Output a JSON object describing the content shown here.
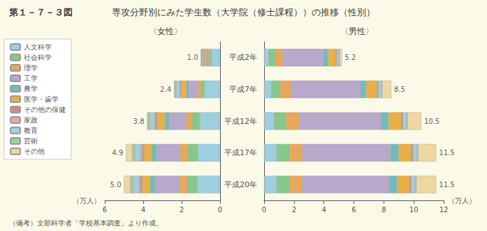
{
  "title": "第１－７－３図",
  "subtitle": "専攻分野別にみた学生数（大学院（修士課程））の推移（性別）",
  "note": "（備考）文部科学者「学校基本調査」より作成。",
  "chart_data": [
    {
      "type": "bar",
      "orientation": "horizontal",
      "stacked": true,
      "title": "〈女性〉",
      "x_label": "（万人）",
      "categories": [
        "平成2年",
        "平成7年",
        "平成12年",
        "平成17年",
        "平成20年"
      ],
      "xlim": [
        6,
        0
      ],
      "xticks": [
        6,
        4,
        2,
        0
      ],
      "grid": false,
      "legend": "left",
      "totals": [
        1.0,
        2.4,
        3.8,
        4.9,
        5.0
      ],
      "total_labels": [
        "1.0",
        "2.4",
        "3.8",
        "4.9",
        "5.0"
      ],
      "series": [
        {
          "name": "人文科学",
          "color": "#9DCFDF",
          "values": [
            0.4516,
            0.8,
            1.0605,
            1.1715,
            1.1979
          ]
        },
        {
          "name": "社会科学",
          "color": "#84C98A",
          "values": [
            0.0806,
            0.2154,
            0.3977,
            0.5094,
            0.5208
          ]
        },
        {
          "name": "理学",
          "color": "#E8A858",
          "values": [
            0.0806,
            0.1846,
            0.3093,
            0.4075,
            0.4167
          ]
        },
        {
          "name": "工学",
          "color": "#B8A8CC",
          "values": [
            0.0968,
            0.4308,
            0.8837,
            1.2225,
            1.25
          ]
        },
        {
          "name": "農学",
          "color": "#70BCBC",
          "values": [
            0.0323,
            0.1231,
            0.2209,
            0.2547,
            0.2604
          ]
        },
        {
          "name": "医学・歯学",
          "color": "#E8B048",
          "values": [
            0.1129,
            0.2769,
            0.3977,
            0.4075,
            0.4167
          ]
        },
        {
          "name": "その他の保健",
          "color": "#C89080",
          "values": [
            0.0161,
            0.0462,
            0.0884,
            0.1019,
            0.1042
          ]
        },
        {
          "name": "家政",
          "color": "#E8A8A0",
          "values": [
            0.0242,
            0.0462,
            0.053,
            0.0611,
            0.0625
          ]
        },
        {
          "name": "教育",
          "color": "#A8CCE0",
          "values": [
            0.0645,
            0.1538,
            0.2209,
            0.2801,
            0.2865
          ]
        },
        {
          "name": "芸術",
          "color": "#98D0A0",
          "values": [
            0.0323,
            0.0923,
            0.1326,
            0.1528,
            0.15625
          ]
        },
        {
          "name": "その他",
          "color": "#EED8A0",
          "values": [
            0.0081,
            0.0308,
            0.0353,
            0.3311,
            0.328125
          ]
        }
      ]
    },
    {
      "type": "bar",
      "orientation": "horizontal",
      "stacked": true,
      "title": "〈男性〉",
      "x_label": "（万人）",
      "categories": [
        "平成2年",
        "平成7年",
        "平成12年",
        "平成17年",
        "平成20年"
      ],
      "xlim": [
        0,
        12
      ],
      "xticks": [
        0,
        2,
        4,
        6,
        8,
        10,
        12
      ],
      "grid": false,
      "totals": [
        5.2,
        8.5,
        10.5,
        11.5,
        11.5
      ],
      "total_labels": [
        "5.2",
        "8.5",
        "10.5",
        "11.5",
        "11.5"
      ],
      "series": [
        {
          "name": "人文科学",
          "color": "#9DCFDF",
          "values": [
            0.312,
            0.4862,
            0.6749,
            0.8448,
            0.844
          ]
        },
        {
          "name": "社会科学",
          "color": "#84C98A",
          "values": [
            0.416,
            0.5672,
            0.7713,
            0.8448,
            0.844
          ]
        },
        {
          "name": "理学",
          "color": "#E8A858",
          "values": [
            0.52,
            0.7293,
            0.8678,
            0.8448,
            0.844
          ]
        },
        {
          "name": "工学",
          "color": "#B8A8CC",
          "values": [
            2.704,
            4.6187,
            5.4959,
            5.9137,
            5.8028
          ]
        },
        {
          "name": "農学",
          "color": "#70BCBC",
          "values": [
            0.312,
            0.4051,
            0.4821,
            0.528,
            0.5275
          ]
        },
        {
          "name": "医学・歯学",
          "color": "#E8B048",
          "values": [
            0.52,
            0.7293,
            0.8678,
            0.8448,
            0.844
          ]
        },
        {
          "name": "その他の保健",
          "color": "#C89080",
          "values": [
            0.052,
            0.081,
            0.0964,
            0.1056,
            0.1055
          ]
        },
        {
          "name": "家政",
          "color": "#E8A8A0",
          "values": [
            0.0104,
            0.0081,
            0.0096,
            0.0106,
            0.0106
          ]
        },
        {
          "name": "教育",
          "color": "#A8CCE0",
          "values": [
            0.156,
            0.2026,
            0.241,
            0.264,
            0.2638
          ]
        },
        {
          "name": "芸術",
          "color": "#98D0A0",
          "values": [
            0.052,
            0.0648,
            0.0771,
            0.0845,
            0.0844
          ]
        },
        {
          "name": "その他",
          "color": "#EED8A0",
          "values": [
            0.1456,
            0.6077,
            0.916,
            1.2144,
            1.3294
          ]
        }
      ]
    }
  ]
}
